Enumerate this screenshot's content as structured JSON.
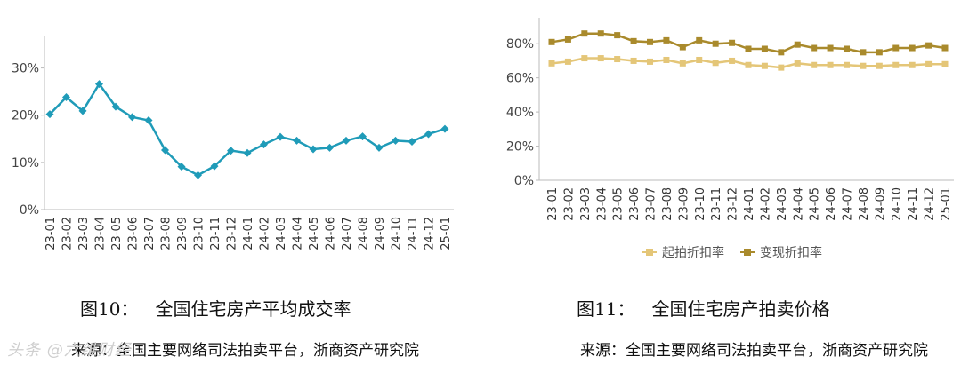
{
  "chart_data": [
    {
      "type": "line",
      "title": "",
      "categories": [
        "23-01",
        "23-02",
        "23-03",
        "23-04",
        "23-05",
        "23-06",
        "23-07",
        "23-08",
        "23-09",
        "23-10",
        "23-11",
        "23-12",
        "24-01",
        "24-02",
        "24-03",
        "24-04",
        "24-05",
        "24-06",
        "24-07",
        "24-08",
        "24-09",
        "24-10",
        "24-11",
        "24-12",
        "25-01"
      ],
      "series": [
        {
          "values": [
            20.2,
            23.8,
            20.9,
            26.6,
            21.8,
            19.6,
            18.9,
            12.6,
            9.1,
            7.3,
            9.2,
            12.5,
            12.0,
            13.8,
            15.4,
            14.6,
            12.8,
            13.1,
            14.6,
            15.5,
            13.1,
            14.6,
            14.4,
            16.0,
            17.1
          ],
          "color": "#1f9bb8"
        }
      ],
      "yticks": [
        "0%",
        "10%",
        "20%",
        "30%"
      ],
      "ylim": [
        0,
        35
      ],
      "grid": false,
      "caption": "图10：   全国住宅房产平均成交率",
      "source": "来源：全国主要网络司法拍卖平台，浙商资产研究院"
    },
    {
      "type": "line",
      "title": "",
      "categories": [
        "23-01",
        "23-02",
        "23-03",
        "23-04",
        "23-05",
        "23-06",
        "23-07",
        "23-08",
        "23-09",
        "23-10",
        "23-11",
        "23-12",
        "24-01",
        "24-02",
        "24-03",
        "24-04",
        "24-05",
        "24-06",
        "24-07",
        "24-08",
        "24-09",
        "24-10",
        "24-11",
        "24-12",
        "25-01"
      ],
      "series": [
        {
          "name": "起拍折扣率",
          "values": [
            68.5,
            69.5,
            71.5,
            71.5,
            71.0,
            70.0,
            69.5,
            70.5,
            68.5,
            70.5,
            68.8,
            70.0,
            67.5,
            67.0,
            66.0,
            68.5,
            67.5,
            67.5,
            67.5,
            67.0,
            67.0,
            67.5,
            67.5,
            68.0,
            68.0
          ],
          "color": "#e4c678"
        },
        {
          "name": "变现折扣率",
          "values": [
            81.0,
            82.5,
            86.0,
            86.0,
            85.0,
            81.5,
            81.0,
            82.0,
            78.0,
            82.0,
            80.0,
            80.5,
            77.0,
            77.0,
            75.0,
            79.5,
            77.5,
            77.5,
            77.0,
            75.0,
            75.0,
            77.5,
            77.5,
            79.0,
            77.5
          ],
          "color": "#a98a2c"
        }
      ],
      "yticks": [
        "0%",
        "20%",
        "40%",
        "60%",
        "80%"
      ],
      "ylim": [
        0,
        90
      ],
      "legend": "bottom",
      "grid": false,
      "caption": "图11：   全国住宅房产拍卖价格",
      "source": "来源：全国主要网络司法拍卖平台，浙商资产研究院"
    }
  ],
  "watermark": "头条 @六维财经"
}
